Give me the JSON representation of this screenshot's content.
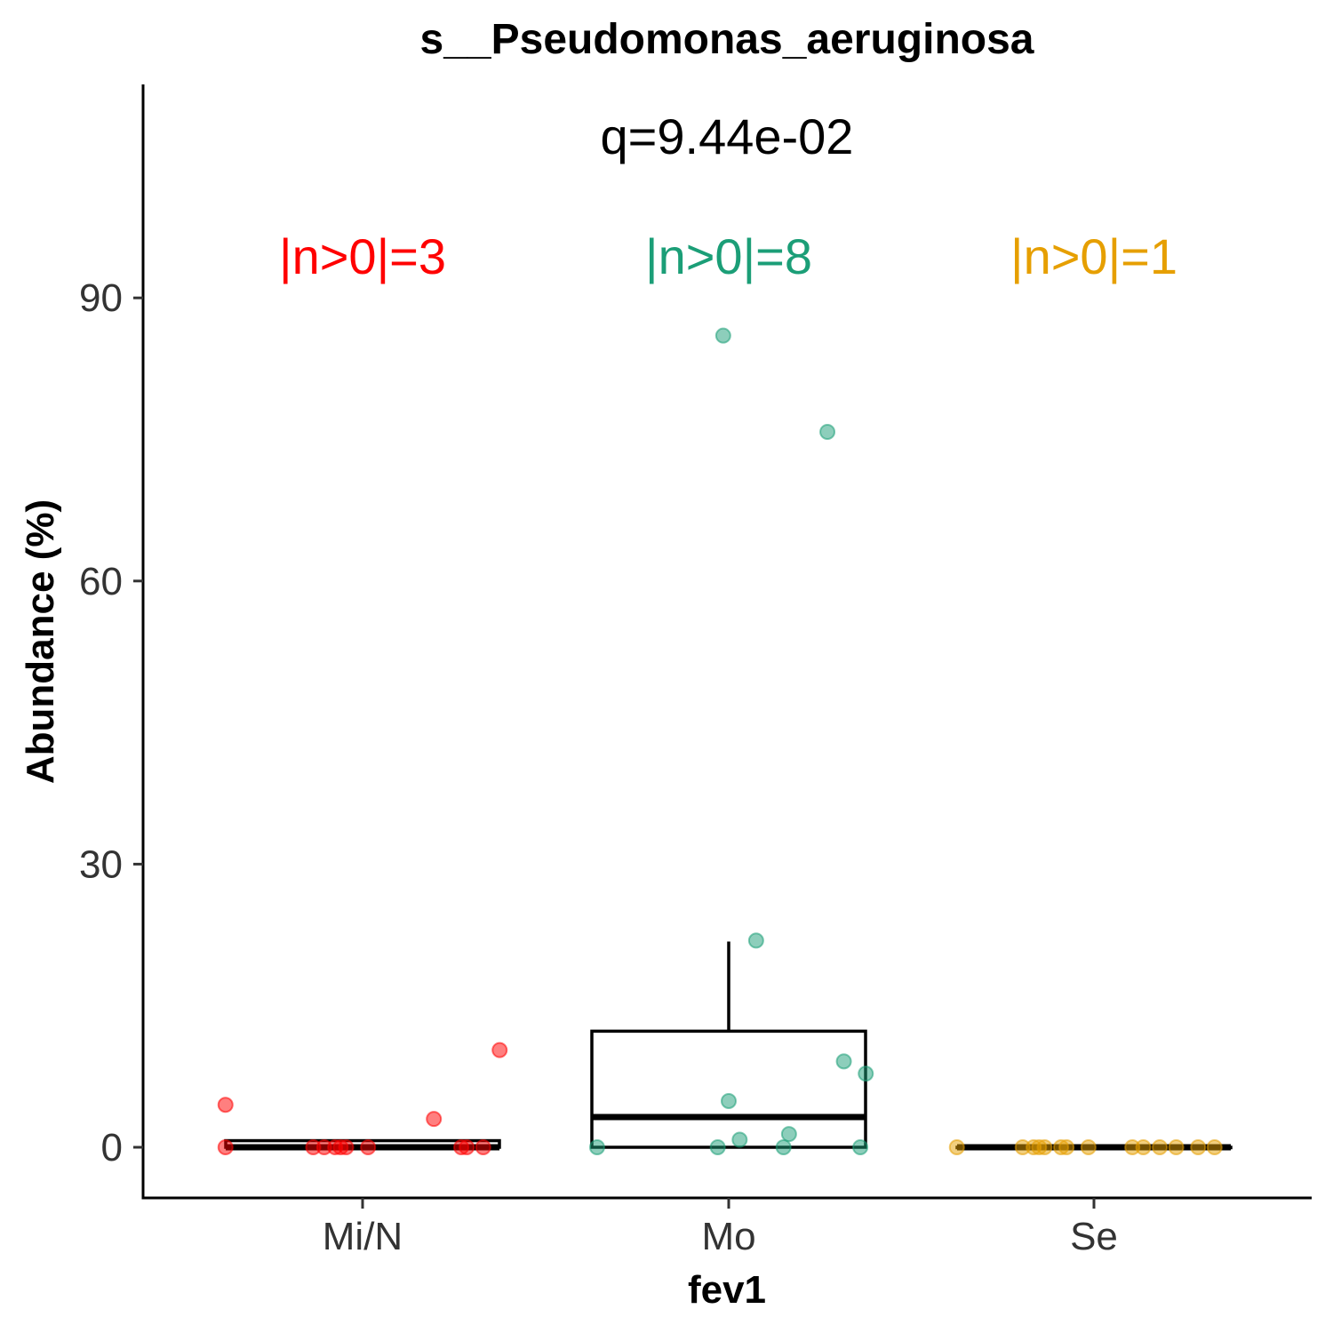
{
  "chart_data": {
    "type": "box",
    "title": "s__Pseudomonas_aeruginosa",
    "xlabel": "fev1",
    "ylabel": "Abundance (%)",
    "ylim": [
      -9,
      113
    ],
    "yticks": [
      0,
      30,
      60,
      90
    ],
    "grid": false,
    "legend": "none",
    "pvalue_label": "q=9.44e-02",
    "categories": [
      "Mi/N",
      "Mo",
      "Se"
    ],
    "groups": [
      {
        "category": "Mi/N",
        "color": "#FF0000",
        "count_label": "|n>0|=3",
        "box": {
          "q1": 0,
          "median": 0,
          "q3": 0.7,
          "whisker_low": 0,
          "whisker_high": 0.7
        },
        "points": [
          {
            "offset": -0.25,
            "value": 4.5
          },
          {
            "offset": -0.25,
            "value": 0
          },
          {
            "offset": -0.09,
            "value": 0
          },
          {
            "offset": -0.07,
            "value": 0
          },
          {
            "offset": -0.05,
            "value": 0
          },
          {
            "offset": -0.04,
            "value": 0
          },
          {
            "offset": -0.03,
            "value": 0
          },
          {
            "offset": 0.01,
            "value": 0
          },
          {
            "offset": 0.13,
            "value": 3.0
          },
          {
            "offset": 0.18,
            "value": 0
          },
          {
            "offset": 0.19,
            "value": 0
          },
          {
            "offset": 0.22,
            "value": 0
          },
          {
            "offset": 0.25,
            "value": 10.3
          }
        ]
      },
      {
        "category": "Mo",
        "color": "#1B9E77",
        "count_label": "|n>0|=8",
        "box": {
          "q1": 0,
          "median": 3.2,
          "q3": 12.3,
          "whisker_low": 0,
          "whisker_high": 21.8
        },
        "points": [
          {
            "offset": -0.01,
            "value": 86.0
          },
          {
            "offset": 0.18,
            "value": 75.8
          },
          {
            "offset": 0.05,
            "value": 21.9
          },
          {
            "offset": 0.21,
            "value": 9.1
          },
          {
            "offset": 0.25,
            "value": 7.8
          },
          {
            "offset": 0.0,
            "value": 4.9
          },
          {
            "offset": 0.02,
            "value": 0.8
          },
          {
            "offset": 0.11,
            "value": 1.4
          },
          {
            "offset": -0.24,
            "value": 0
          },
          {
            "offset": -0.02,
            "value": 0
          },
          {
            "offset": 0.1,
            "value": 0
          },
          {
            "offset": 0.24,
            "value": 0
          }
        ]
      },
      {
        "category": "Se",
        "color": "#E69F00",
        "count_label": "|n>0|=1",
        "box": {
          "q1": 0,
          "median": 0,
          "q3": 0,
          "whisker_low": 0,
          "whisker_high": 0
        },
        "points": [
          {
            "offset": -0.25,
            "value": 0
          },
          {
            "offset": -0.13,
            "value": 0
          },
          {
            "offset": -0.11,
            "value": 0
          },
          {
            "offset": -0.1,
            "value": 0
          },
          {
            "offset": -0.09,
            "value": 0
          },
          {
            "offset": -0.06,
            "value": 0
          },
          {
            "offset": -0.05,
            "value": 0
          },
          {
            "offset": -0.01,
            "value": 0
          },
          {
            "offset": 0.07,
            "value": 0
          },
          {
            "offset": 0.09,
            "value": 0
          },
          {
            "offset": 0.12,
            "value": 0
          },
          {
            "offset": 0.15,
            "value": 0
          },
          {
            "offset": 0.19,
            "value": 0
          },
          {
            "offset": 0.22,
            "value": 0
          }
        ]
      }
    ]
  }
}
